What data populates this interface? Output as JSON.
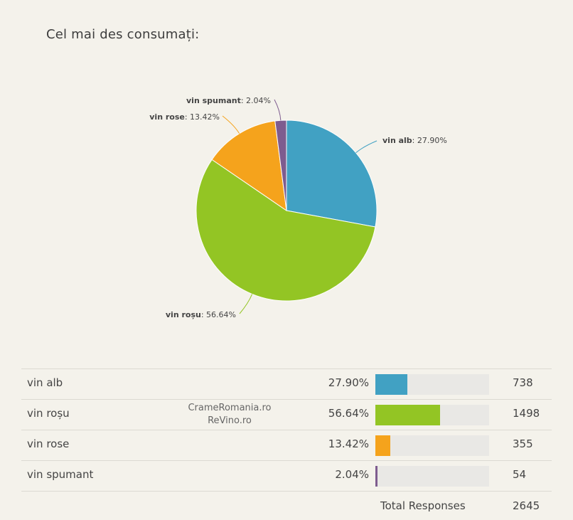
{
  "chart_data": {
    "type": "pie",
    "title": "Cel mai des consumați:",
    "slices": [
      {
        "name": "vin alb",
        "percent": 27.9,
        "percent_label": "27.90%",
        "count": 738,
        "color": "#41a1c3"
      },
      {
        "name": "vin roșu",
        "percent": 56.64,
        "percent_label": "56.64%",
        "count": 1498,
        "color": "#93c524"
      },
      {
        "name": "vin rose",
        "percent": 13.42,
        "percent_label": "13.42%",
        "count": 355,
        "color": "#f5a31c"
      },
      {
        "name": "vin spumant",
        "percent": 2.04,
        "percent_label": "2.04%",
        "count": 54,
        "color": "#7e5c8f"
      }
    ]
  },
  "table": {
    "total_label": "Total Responses",
    "total_value": "2645"
  },
  "watermark": {
    "line1": "CrameRomania.ro",
    "line2": "ReVino.ro"
  }
}
